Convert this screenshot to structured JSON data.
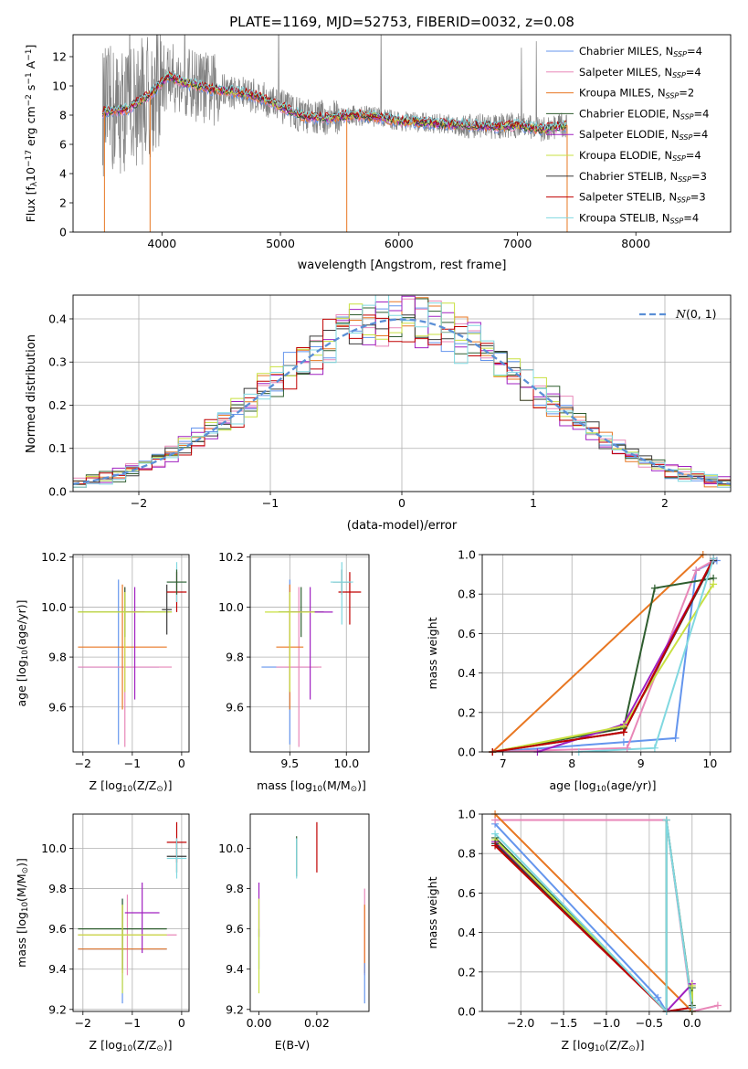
{
  "figure_title": "PLATE=1169, MJD=52753, FIBERID=0032, z=0.08",
  "models": [
    {
      "name": "Chabrier MILES",
      "nssp": "4",
      "color": "#6495ed"
    },
    {
      "name": "Salpeter MILES",
      "nssp": "4",
      "color": "#e887b8"
    },
    {
      "name": "Kroupa MILES",
      "nssp": "2",
      "color": "#e87722"
    },
    {
      "name": "Chabrier ELODIE",
      "nssp": "4",
      "color": "#2e5d2e"
    },
    {
      "name": "Salpeter ELODIE",
      "nssp": "4",
      "color": "#a020c0"
    },
    {
      "name": "Kroupa ELODIE",
      "nssp": "4",
      "color": "#c8e040"
    },
    {
      "name": "Chabrier STELIB",
      "nssp": "3",
      "color": "#3a3a3a"
    },
    {
      "name": "Salpeter STELIB",
      "nssp": "3",
      "color": "#c00000"
    },
    {
      "name": "Kroupa STELIB",
      "nssp": "4",
      "color": "#80d8e0"
    }
  ],
  "chart_data": [
    {
      "id": "spectrum",
      "type": "line",
      "xlabel": "wavelength [Angstrom, rest frame]",
      "ylabel": "Flux [f$_\\lambda$10$^{-17}$ erg cm$^{-2}$ s$^{-1}$ A$^{-1}$]",
      "ylabel_text": "Flux [f",
      "xlim": [
        3250,
        8800
      ],
      "ylim": [
        0,
        13.5
      ],
      "xticks": [
        4000,
        5000,
        6000,
        7000,
        8000
      ],
      "yticks": [
        0,
        2,
        4,
        6,
        8,
        10,
        12
      ],
      "grid": false,
      "legend_position": "upper right",
      "data_color": "#808080",
      "continuum": {
        "x": [
          3500,
          3700,
          3900,
          4050,
          4200,
          4400,
          4600,
          4800,
          5000,
          5200,
          5400,
          5600,
          5800,
          6000,
          6200,
          6400,
          6600,
          6800,
          7000,
          7200,
          7400
        ],
        "y": [
          8.2,
          8.4,
          9.4,
          10.7,
          10.2,
          9.8,
          9.6,
          9.3,
          8.6,
          7.9,
          7.8,
          8.0,
          7.9,
          7.6,
          7.5,
          7.4,
          7.3,
          7.2,
          7.3,
          7.0,
          7.3
        ]
      }
    },
    {
      "id": "residuals",
      "type": "step",
      "xlabel": "(data-model)/error",
      "ylabel": "Normed distribution",
      "xlim": [
        -2.5,
        2.5
      ],
      "ylim": [
        0,
        0.455
      ],
      "xticks": [
        -2,
        -1,
        0,
        1,
        2
      ],
      "yticks": [
        0.0,
        0.1,
        0.2,
        0.3,
        0.4
      ],
      "grid": true,
      "legend": "$\\mathcal{N}(0,1)$",
      "legend_text": "N(0,1)",
      "legend_position": "upper right",
      "gaussian_color": "#5b8fd6"
    },
    {
      "id": "age_vs_Z",
      "type": "errorbar",
      "xlabel": "Z [log$_{10}$(Z/Z$_\\odot$)]",
      "ylabel": "age  [log$_{10}$(age/yr)]",
      "xlim": [
        -2.2,
        0.15
      ],
      "ylim": [
        9.42,
        10.21
      ],
      "xticks": [
        -2,
        -1,
        0
      ],
      "yticks": [
        9.6,
        9.8,
        10.0,
        10.2
      ],
      "grid": true,
      "points": [
        {
          "m": 0,
          "x": -1.28,
          "y": 9.76,
          "xerr": [
            0.82,
            0.82
          ],
          "yerr": [
            0.31,
            0.35
          ]
        },
        {
          "m": 1,
          "x": -1.15,
          "y": 9.76,
          "xerr": [
            0.95,
            0.95
          ],
          "yerr": [
            0.32,
            0.32
          ]
        },
        {
          "m": 2,
          "x": -1.2,
          "y": 9.84,
          "xerr": [
            0.9,
            0.9
          ],
          "yerr": [
            0.25,
            0.25
          ]
        },
        {
          "m": 3,
          "x": -1.15,
          "y": 9.98,
          "xerr": [
            0.95,
            0.95
          ],
          "yerr": [
            0.1,
            0.1
          ]
        },
        {
          "m": 4,
          "x": -0.95,
          "y": 9.98,
          "xerr": [
            0.2,
            0.2
          ],
          "yerr": [
            0.35,
            0.1
          ]
        },
        {
          "m": 5,
          "x": -1.15,
          "y": 9.98,
          "xerr": [
            0.95,
            0.95
          ],
          "yerr": [
            0.32,
            0.08
          ]
        },
        {
          "m": 6,
          "x": -0.3,
          "y": 9.99,
          "xerr": [
            0.1,
            0.1
          ],
          "yerr": [
            0.1,
            0.1
          ]
        },
        {
          "m": 7,
          "x": -0.1,
          "y": 10.06,
          "xerr": [
            0.2,
            0.2
          ],
          "yerr": [
            0.08,
            0.08
          ]
        },
        {
          "m": 8,
          "x": -0.1,
          "y": 10.1,
          "xerr": [
            0.2,
            0.2
          ],
          "yerr": [
            0.08,
            0.08
          ]
        },
        {
          "m": 3,
          "x": -0.1,
          "y": 10.1,
          "xerr": [
            0.2,
            0.2
          ],
          "yerr": [
            0.05,
            0.05
          ]
        }
      ]
    },
    {
      "id": "age_vs_mass",
      "type": "errorbar",
      "xlabel": "mass [log$_{10}$(M/M$_\\odot$)]",
      "ylabel": "",
      "xlim": [
        9.15,
        10.2
      ],
      "ylim": [
        9.42,
        10.21
      ],
      "xticks": [
        9.5,
        10.0
      ],
      "yticks": [
        9.6,
        9.8,
        10.0,
        10.2
      ],
      "grid": true,
      "points": [
        {
          "m": 0,
          "x": 9.5,
          "y": 9.76,
          "xerr": [
            0.25,
            0.25
          ],
          "yerr": [
            0.31,
            0.35
          ]
        },
        {
          "m": 1,
          "x": 9.58,
          "y": 9.76,
          "xerr": [
            0.2,
            0.2
          ],
          "yerr": [
            0.32,
            0.32
          ]
        },
        {
          "m": 2,
          "x": 9.5,
          "y": 9.84,
          "xerr": [
            0.12,
            0.12
          ],
          "yerr": [
            0.25,
            0.25
          ]
        },
        {
          "m": 3,
          "x": 9.6,
          "y": 9.98,
          "xerr": [
            0.2,
            0.2
          ],
          "yerr": [
            0.1,
            0.1
          ]
        },
        {
          "m": 4,
          "x": 9.68,
          "y": 9.98,
          "xerr": [
            0.2,
            0.2
          ],
          "yerr": [
            0.35,
            0.1
          ]
        },
        {
          "m": 5,
          "x": 9.5,
          "y": 9.98,
          "xerr": [
            0.22,
            0.22
          ],
          "yerr": [
            0.32,
            0.08
          ]
        },
        {
          "m": 6,
          "x": 9.96,
          "y": 10.1,
          "xerr": [
            0.08,
            0.08
          ],
          "yerr": [
            0.05,
            0.05
          ]
        },
        {
          "m": 7,
          "x": 10.03,
          "y": 10.06,
          "xerr": [
            0.1,
            0.1
          ],
          "yerr": [
            0.13,
            0.08
          ]
        },
        {
          "m": 8,
          "x": 9.96,
          "y": 10.1,
          "xerr": [
            0.1,
            0.1
          ],
          "yerr": [
            0.17,
            0.08
          ]
        }
      ]
    },
    {
      "id": "weight_vs_age",
      "type": "line",
      "xlabel": "age  [log$_{10}$(age/yr)]",
      "ylabel": "mass weight",
      "xlim": [
        6.7,
        10.3
      ],
      "ylim": [
        0,
        1.0
      ],
      "xticks": [
        7,
        8,
        9,
        10
      ],
      "yticks": [
        0.0,
        0.2,
        0.4,
        0.6,
        0.8,
        1.0
      ],
      "grid": true,
      "series": [
        {
          "m": 0,
          "x": [
            6.85,
            8.75,
            9.5,
            9.8,
            10.1
          ],
          "y": [
            0.0,
            0.05,
            0.07,
            0.92,
            0.97
          ]
        },
        {
          "m": 1,
          "x": [
            6.85,
            8.8,
            9.8,
            10.05
          ],
          "y": [
            0.0,
            0.02,
            0.92,
            0.97
          ]
        },
        {
          "m": 2,
          "x": [
            6.85,
            9.9
          ],
          "y": [
            0.0,
            1.0
          ]
        },
        {
          "m": 3,
          "x": [
            6.85,
            8.75,
            9.2,
            10.05
          ],
          "y": [
            0.0,
            0.12,
            0.83,
            0.88
          ]
        },
        {
          "m": 4,
          "x": [
            7.5,
            8.75,
            10.05
          ],
          "y": [
            0.0,
            0.14,
            0.97
          ]
        },
        {
          "m": 5,
          "x": [
            6.85,
            8.75,
            10.05
          ],
          "y": [
            0.0,
            0.13,
            0.85
          ]
        },
        {
          "m": 6,
          "x": [
            6.85,
            8.75,
            10.05
          ],
          "y": [
            0.0,
            0.1,
            0.97
          ]
        },
        {
          "m": 7,
          "x": [
            6.85,
            8.75,
            10.05
          ],
          "y": [
            0.0,
            0.1,
            0.98
          ]
        },
        {
          "m": 8,
          "x": [
            8.1,
            9.2,
            10.05
          ],
          "y": [
            0.0,
            0.02,
            0.98
          ]
        }
      ]
    },
    {
      "id": "mass_vs_Z",
      "type": "errorbar",
      "xlabel": "Z [log$_{10}$(Z/Z$_\\odot$)]",
      "ylabel": "mass [log$_{10}$(M/M$_\\odot$)]",
      "xlim": [
        -2.2,
        0.15
      ],
      "ylim": [
        9.19,
        10.17
      ],
      "xticks": [
        -2,
        -1,
        0
      ],
      "yticks": [
        9.2,
        9.4,
        9.6,
        9.8,
        10.0
      ],
      "grid": true,
      "points": [
        {
          "m": 0,
          "x": -1.2,
          "y": 9.5,
          "xerr": [
            0.9,
            0.9
          ],
          "yerr": [
            0.27,
            0.25
          ]
        },
        {
          "m": 1,
          "x": -1.1,
          "y": 9.57,
          "xerr": [
            1.0,
            1.0
          ],
          "yerr": [
            0.2,
            0.2
          ]
        },
        {
          "m": 2,
          "x": -1.2,
          "y": 9.5,
          "xerr": [
            0.9,
            0.9
          ],
          "yerr": [
            0.12,
            0.22
          ]
        },
        {
          "m": 3,
          "x": -1.2,
          "y": 9.6,
          "xerr": [
            0.9,
            0.9
          ],
          "yerr": [
            0.2,
            0.15
          ]
        },
        {
          "m": 4,
          "x": -0.8,
          "y": 9.68,
          "xerr": [
            0.35,
            0.35
          ],
          "yerr": [
            0.2,
            0.15
          ]
        },
        {
          "m": 5,
          "x": -1.2,
          "y": 9.57,
          "xerr": [
            0.9,
            0.9
          ],
          "yerr": [
            0.29,
            0.15
          ]
        },
        {
          "m": 6,
          "x": -0.1,
          "y": 9.96,
          "xerr": [
            0.2,
            0.2
          ],
          "yerr": [
            0.08,
            0.08
          ]
        },
        {
          "m": 7,
          "x": -0.1,
          "y": 10.03,
          "xerr": [
            0.2,
            0.2
          ],
          "yerr": [
            0.1,
            0.1
          ]
        },
        {
          "m": 8,
          "x": -0.1,
          "y": 9.95,
          "xerr": [
            0.2,
            0.2
          ],
          "yerr": [
            0.1,
            0.1
          ]
        }
      ]
    },
    {
      "id": "mass_vs_ebv",
      "type": "errorbar",
      "xlabel": "E(B-V)",
      "ylabel": "",
      "xlim": [
        -0.003,
        0.038
      ],
      "ylim": [
        9.19,
        10.17
      ],
      "xticks": [
        0.0,
        0.02
      ],
      "yticks": [
        9.2,
        9.4,
        9.6,
        9.8,
        10.0
      ],
      "grid": false,
      "points": [
        {
          "m": 0,
          "x": 0.0,
          "y": 9.5,
          "xerr": [
            0,
            0
          ],
          "yerr": [
            0.1,
            0.1
          ]
        },
        {
          "m": 4,
          "x": 0.0,
          "y": 9.68,
          "xerr": [
            0,
            0
          ],
          "yerr": [
            0.12,
            0.15
          ]
        },
        {
          "m": 5,
          "x": 0.0,
          "y": 9.57,
          "xerr": [
            0,
            0
          ],
          "yerr": [
            0.29,
            0.18
          ]
        },
        {
          "m": 3,
          "x": 0.013,
          "y": 9.96,
          "xerr": [
            0,
            0
          ],
          "yerr": [
            0.1,
            0.1
          ]
        },
        {
          "m": 8,
          "x": 0.013,
          "y": 9.95,
          "xerr": [
            0,
            0
          ],
          "yerr": [
            0.1,
            0.1
          ]
        },
        {
          "m": 7,
          "x": 0.02,
          "y": 10.03,
          "xerr": [
            0,
            0
          ],
          "yerr": [
            0.15,
            0.1
          ]
        },
        {
          "m": 1,
          "x": 0.0365,
          "y": 9.57,
          "xerr": [
            0,
            0
          ],
          "yerr": [
            0.2,
            0.23
          ]
        },
        {
          "m": 2,
          "x": 0.0365,
          "y": 9.5,
          "xerr": [
            0,
            0
          ],
          "yerr": [
            0.12,
            0.22
          ]
        },
        {
          "m": 0,
          "x": 0.0365,
          "y": 9.33,
          "xerr": [
            0,
            0
          ],
          "yerr": [
            0.1,
            0.1
          ]
        }
      ]
    },
    {
      "id": "weight_vs_Z",
      "type": "line",
      "xlabel": "Z [log$_{10}$(Z/Z$_\\odot$)]",
      "ylabel": "mass weight",
      "xlim": [
        -2.45,
        0.45
      ],
      "ylim": [
        0,
        1.0
      ],
      "xticks": [
        -2.0,
        -1.5,
        -1.0,
        -0.5,
        0.0
      ],
      "yticks": [
        0.0,
        0.2,
        0.4,
        0.6,
        0.8,
        1.0
      ],
      "grid": true,
      "series": [
        {
          "m": 0,
          "x": [
            -2.3,
            -0.4,
            -0.3,
            0.0
          ],
          "y": [
            0.95,
            0.07,
            0.0,
            0.02
          ]
        },
        {
          "m": 1,
          "x": [
            -2.3,
            -0.3,
            0.0,
            0.3
          ],
          "y": [
            0.97,
            0.97,
            0.0,
            0.03
          ]
        },
        {
          "m": 2,
          "x": [
            -2.3,
            0.0
          ],
          "y": [
            1.0,
            0.0
          ]
        },
        {
          "m": 3,
          "x": [
            -2.3,
            -0.3,
            -0.3,
            0.0,
            0.0
          ],
          "y": [
            0.88,
            0.0,
            0.97,
            0.03,
            0.12
          ]
        },
        {
          "m": 4,
          "x": [
            -2.3,
            -0.3,
            0.0
          ],
          "y": [
            0.86,
            0.0,
            0.14
          ]
        },
        {
          "m": 5,
          "x": [
            -2.3,
            -0.3,
            0.0,
            0.0
          ],
          "y": [
            0.87,
            0.0,
            0.0,
            0.13
          ]
        },
        {
          "m": 6,
          "x": [
            -2.3,
            -0.3,
            0.0
          ],
          "y": [
            0.85,
            0.0,
            0.0
          ]
        },
        {
          "m": 7,
          "x": [
            -2.3,
            -0.3,
            0.0
          ],
          "y": [
            0.84,
            0.0,
            0.02
          ]
        },
        {
          "m": 8,
          "x": [
            -2.3,
            -0.3,
            -0.3,
            0.0
          ],
          "y": [
            0.9,
            0.0,
            0.97,
            0.02
          ]
        }
      ]
    }
  ]
}
